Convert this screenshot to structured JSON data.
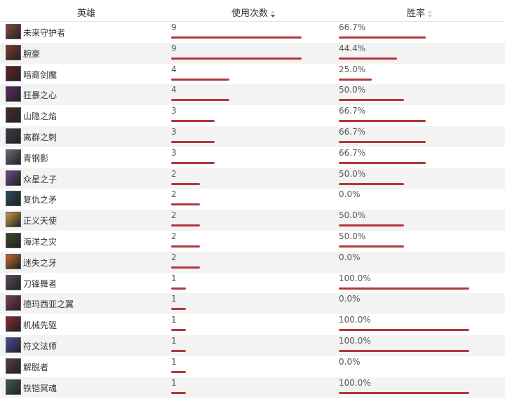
{
  "headers": {
    "hero": "英雄",
    "uses": "使用次数",
    "winrate": "胜率"
  },
  "scale": {
    "uses_max": 9
  },
  "rows": [
    {
      "name": "未来守护者",
      "uses": "9",
      "uses_num": 9,
      "winrate": "66.7%",
      "win_num": 66.7,
      "avatar_color": "#8a4a3a"
    },
    {
      "name": "腕豪",
      "uses": "9",
      "uses_num": 9,
      "winrate": "44.4%",
      "win_num": 44.4,
      "avatar_color": "#7a3a2e"
    },
    {
      "name": "暗裔剑魔",
      "uses": "4",
      "uses_num": 4,
      "winrate": "25.0%",
      "win_num": 25.0,
      "avatar_color": "#6a1e1e"
    },
    {
      "name": "狂暴之心",
      "uses": "4",
      "uses_num": 4,
      "winrate": "50.0%",
      "win_num": 50.0,
      "avatar_color": "#5a2a6a"
    },
    {
      "name": "山隐之焰",
      "uses": "3",
      "uses_num": 3,
      "winrate": "66.7%",
      "win_num": 66.7,
      "avatar_color": "#4a2a2a"
    },
    {
      "name": "离群之刺",
      "uses": "3",
      "uses_num": 3,
      "winrate": "66.7%",
      "win_num": 66.7,
      "avatar_color": "#3a3a4a"
    },
    {
      "name": "青钢影",
      "uses": "3",
      "uses_num": 3,
      "winrate": "66.7%",
      "win_num": 66.7,
      "avatar_color": "#6a6a7a"
    },
    {
      "name": "众星之子",
      "uses": "2",
      "uses_num": 2,
      "winrate": "50.0%",
      "win_num": 50.0,
      "avatar_color": "#6a4a8a"
    },
    {
      "name": "复仇之矛",
      "uses": "2",
      "uses_num": 2,
      "winrate": "0.0%",
      "win_num": 0.0,
      "avatar_color": "#2a4a5a"
    },
    {
      "name": "正义天使",
      "uses": "2",
      "uses_num": 2,
      "winrate": "50.0%",
      "win_num": 50.0,
      "avatar_color": "#c89a4a"
    },
    {
      "name": "海洋之灾",
      "uses": "2",
      "uses_num": 2,
      "winrate": "50.0%",
      "win_num": 50.0,
      "avatar_color": "#3a4a2a"
    },
    {
      "name": "迷失之牙",
      "uses": "2",
      "uses_num": 2,
      "winrate": "0.0%",
      "win_num": 0.0,
      "avatar_color": "#c8682a"
    },
    {
      "name": "刀锋舞者",
      "uses": "1",
      "uses_num": 1,
      "winrate": "100.0%",
      "win_num": 100.0,
      "avatar_color": "#5a4a5a"
    },
    {
      "name": "德玛西亚之翼",
      "uses": "1",
      "uses_num": 1,
      "winrate": "0.0%",
      "win_num": 0.0,
      "avatar_color": "#7a3a5a"
    },
    {
      "name": "机械先驱",
      "uses": "1",
      "uses_num": 1,
      "winrate": "100.0%",
      "win_num": 100.0,
      "avatar_color": "#8a2a2a"
    },
    {
      "name": "符文法师",
      "uses": "1",
      "uses_num": 1,
      "winrate": "100.0%",
      "win_num": 100.0,
      "avatar_color": "#4a4a9a"
    },
    {
      "name": "解脱者",
      "uses": "1",
      "uses_num": 1,
      "winrate": "0.0%",
      "win_num": 0.0,
      "avatar_color": "#5a3a4a"
    },
    {
      "name": "铁铠冥魂",
      "uses": "1",
      "uses_num": 1,
      "winrate": "100.0%",
      "win_num": 100.0,
      "avatar_color": "#3a5a4a"
    }
  ]
}
